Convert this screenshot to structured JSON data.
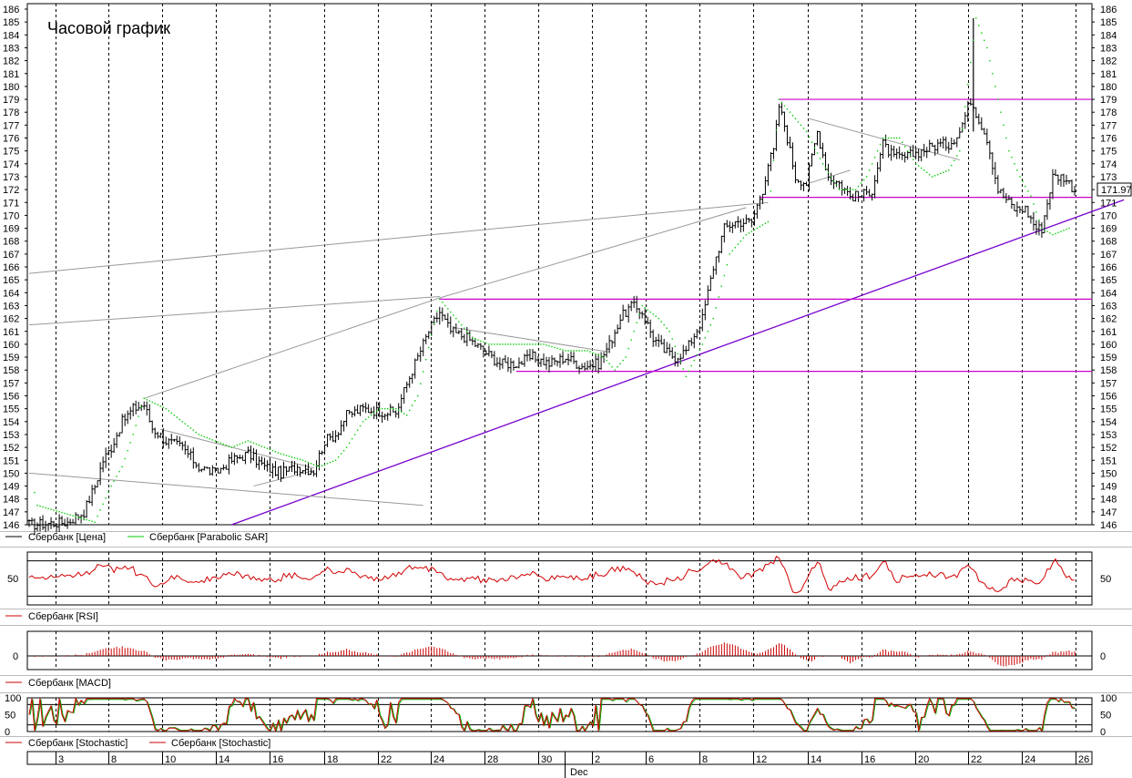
{
  "title": "Часовой график",
  "colors": {
    "price": "#000000",
    "sar": "#00cc00",
    "rsi": "#d00000",
    "macd": "#cc0000",
    "stoch_k": "#cc0000",
    "stoch_d": "#00aa00",
    "level": "#cc00cc",
    "trend": "#7700cc",
    "channel": "#999999",
    "grid": "#000000",
    "last_box": "#000000"
  },
  "chart_data": {
    "type": "candlestick-hourly",
    "price": {
      "ylim": [
        146,
        186
      ],
      "yticks": [
        "146",
        "147",
        "148",
        "149",
        "150",
        "151",
        "152",
        "153",
        "154",
        "155",
        "156",
        "157",
        "158",
        "159",
        "160",
        "161",
        "162",
        "163",
        "164",
        "165",
        "166",
        "167",
        "168",
        "169",
        "170",
        "171",
        "172",
        "173",
        "174",
        "175",
        "176",
        "177",
        "178",
        "179",
        "180",
        "181",
        "182",
        "183",
        "184",
        "185",
        "186"
      ],
      "last_value": "171.97",
      "anchors": [
        [
          0,
          146
        ],
        [
          14,
          146.2
        ],
        [
          20,
          147
        ],
        [
          24,
          149
        ],
        [
          27,
          151
        ],
        [
          30,
          152
        ],
        [
          34,
          154
        ],
        [
          38,
          155
        ],
        [
          42,
          155.3
        ],
        [
          45,
          153.5
        ],
        [
          50,
          152.5
        ],
        [
          56,
          152
        ],
        [
          62,
          150.5
        ],
        [
          68,
          150
        ],
        [
          74,
          151
        ],
        [
          80,
          151.5
        ],
        [
          86,
          150.5
        ],
        [
          92,
          150
        ],
        [
          98,
          150.5
        ],
        [
          104,
          150.2
        ],
        [
          108,
          152.5
        ],
        [
          112,
          153
        ],
        [
          116,
          154.5
        ],
        [
          122,
          155
        ],
        [
          128,
          154.8
        ],
        [
          134,
          154.7
        ],
        [
          140,
          158
        ],
        [
          146,
          161
        ],
        [
          150,
          162.5
        ],
        [
          154,
          161
        ],
        [
          160,
          160.5
        ],
        [
          166,
          159.5
        ],
        [
          172,
          158.5
        ],
        [
          178,
          158.5
        ],
        [
          184,
          159
        ],
        [
          190,
          158.5
        ],
        [
          196,
          159
        ],
        [
          202,
          158.3
        ],
        [
          208,
          158.5
        ],
        [
          212,
          160
        ],
        [
          216,
          162
        ],
        [
          220,
          163
        ],
        [
          224,
          162.5
        ],
        [
          228,
          160.5
        ],
        [
          232,
          159.5
        ],
        [
          236,
          159
        ],
        [
          240,
          159.5
        ],
        [
          246,
          162
        ],
        [
          250,
          166
        ],
        [
          254,
          169
        ],
        [
          258,
          169.5
        ],
        [
          264,
          169.5
        ],
        [
          268,
          172
        ],
        [
          270,
          174
        ],
        [
          272,
          175
        ],
        [
          274,
          178.5
        ],
        [
          276,
          177
        ],
        [
          280,
          173
        ],
        [
          284,
          172.5
        ],
        [
          288,
          176.5
        ],
        [
          292,
          173
        ],
        [
          296,
          172.5
        ],
        [
          300,
          171.5
        ],
        [
          304,
          171.5
        ],
        [
          308,
          172
        ],
        [
          312,
          175.5
        ],
        [
          316,
          174.5
        ],
        [
          320,
          174.5
        ],
        [
          326,
          175
        ],
        [
          332,
          175.5
        ],
        [
          336,
          175.5
        ],
        [
          340,
          176.5
        ],
        [
          344,
          179
        ],
        [
          348,
          177
        ],
        [
          350,
          176
        ],
        [
          352,
          174
        ],
        [
          354,
          172
        ],
        [
          356,
          171.5
        ],
        [
          360,
          170.5
        ],
        [
          364,
          170.5
        ],
        [
          368,
          169
        ],
        [
          370,
          169
        ],
        [
          372,
          171
        ],
        [
          374,
          173
        ],
        [
          378,
          173
        ],
        [
          380,
          172.5
        ],
        [
          382,
          171.97
        ]
      ],
      "wicks": [
        [
          345,
          185.3,
          176.5
        ]
      ],
      "sar": [
        [
          2,
          148.5
        ],
        [
          3,
          147.5
        ],
        [
          24,
          146.2
        ],
        [
          30,
          149
        ],
        [
          34,
          150.5
        ],
        [
          38,
          153
        ],
        [
          42,
          155.8
        ],
        [
          50,
          155
        ],
        [
          56,
          154
        ],
        [
          62,
          153
        ],
        [
          68,
          152.5
        ],
        [
          74,
          152
        ],
        [
          80,
          152.5
        ],
        [
          86,
          152
        ],
        [
          92,
          151.5
        ],
        [
          100,
          151
        ],
        [
          106,
          150.5
        ],
        [
          112,
          151
        ],
        [
          116,
          152
        ],
        [
          122,
          154
        ],
        [
          128,
          155
        ],
        [
          134,
          155
        ],
        [
          138,
          154.5
        ],
        [
          142,
          156
        ],
        [
          150,
          163.5
        ],
        [
          156,
          162
        ],
        [
          162,
          160.5
        ],
        [
          168,
          160
        ],
        [
          174,
          160
        ],
        [
          180,
          160
        ],
        [
          188,
          160
        ],
        [
          196,
          159.5
        ],
        [
          204,
          159.5
        ],
        [
          210,
          159
        ],
        [
          214,
          158
        ],
        [
          218,
          159
        ],
        [
          224,
          163
        ],
        [
          230,
          162
        ],
        [
          234,
          161
        ],
        [
          240,
          157.5
        ],
        [
          246,
          160
        ],
        [
          250,
          162
        ],
        [
          256,
          167
        ],
        [
          262,
          168.5
        ],
        [
          270,
          169.5
        ],
        [
          274,
          179
        ],
        [
          278,
          178
        ],
        [
          284,
          176.5
        ],
        [
          290,
          174
        ],
        [
          296,
          172
        ],
        [
          302,
          172
        ],
        [
          306,
          173
        ],
        [
          312,
          176
        ],
        [
          318,
          176
        ],
        [
          324,
          174
        ],
        [
          330,
          173
        ],
        [
          336,
          173.5
        ],
        [
          340,
          175
        ],
        [
          346,
          185.3
        ],
        [
          350,
          183
        ],
        [
          354,
          179
        ],
        [
          358,
          175
        ],
        [
          362,
          173
        ],
        [
          366,
          171.5
        ],
        [
          370,
          169
        ],
        [
          374,
          168.5
        ],
        [
          380,
          169
        ]
      ],
      "levels": [
        {
          "y": 179.0,
          "x1": 274,
          "x2": 400
        },
        {
          "y": 171.4,
          "x1": 267,
          "x2": 396
        },
        {
          "y": 163.5,
          "x1": 150,
          "x2": 400
        },
        {
          "y": 157.9,
          "x1": 178,
          "x2": 400
        }
      ],
      "trend_lines": [
        {
          "x1": 74,
          "y1": 146,
          "x2": 400,
          "y2": 171.2,
          "kind": "trend"
        },
        {
          "x1": 0,
          "y1": 165.5,
          "x2": 270,
          "y2": 171,
          "kind": "channel"
        },
        {
          "x1": 0,
          "y1": 161.5,
          "x2": 150,
          "y2": 163.7,
          "kind": "channel"
        },
        {
          "x1": 0,
          "y1": 150,
          "x2": 144,
          "y2": 147.5,
          "kind": "channel"
        },
        {
          "x1": 42,
          "y1": 155.8,
          "x2": 150,
          "y2": 163.6,
          "kind": "channel"
        },
        {
          "x1": 150,
          "y1": 163.6,
          "x2": 262,
          "y2": 170.6,
          "kind": "channel"
        },
        {
          "x1": 82,
          "y1": 149,
          "x2": 104,
          "y2": 150.2,
          "kind": "channel"
        },
        {
          "x1": 48,
          "y1": 153.4,
          "x2": 104,
          "y2": 150.4,
          "kind": "channel"
        },
        {
          "x1": 155,
          "y1": 161.3,
          "x2": 212,
          "y2": 159.4,
          "kind": "channel"
        },
        {
          "x1": 285,
          "y1": 177.5,
          "x2": 340,
          "y2": 174.3,
          "kind": "channel"
        },
        {
          "x1": 285,
          "y1": 172.5,
          "x2": 300,
          "y2": 173.5,
          "kind": "channel"
        }
      ]
    },
    "rsi": {
      "ylim": [
        20,
        80
      ],
      "yticks": [
        "50"
      ],
      "levels": [
        70,
        30
      ]
    },
    "macd": {
      "yticks": [
        "0"
      ]
    },
    "stoch": {
      "ylim": [
        0,
        100
      ],
      "yticks": [
        "100",
        "50",
        "0"
      ],
      "levels": [
        80,
        20
      ]
    },
    "x_axis": {
      "day_ticks": [
        "3",
        "8",
        "10",
        "14",
        "16",
        "18",
        "22",
        "24",
        "28",
        "30",
        "2",
        "6",
        "8",
        "12",
        "14",
        "16",
        "20",
        "22",
        "24",
        "26"
      ],
      "month_label": "Dec"
    }
  },
  "legends": {
    "price": "Сбербанк [Цена]",
    "sar": "Сбербанк [Parabolic SAR]",
    "rsi": "Сбербанк [RSI]",
    "macd": "Сбербанк [MACD]",
    "stoch1": "Сбербанк [Stochastic]",
    "stoch2": "Сбербанк [Stochastic]"
  }
}
